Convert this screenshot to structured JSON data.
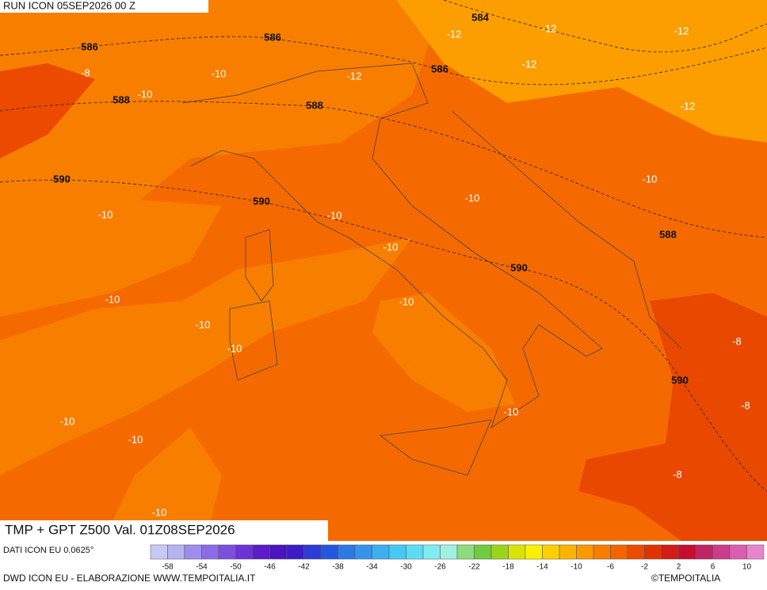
{
  "header": {
    "run": "RUN ICON 05SEP2026 00 Z"
  },
  "title": "TMP + GPT Z500 Val. 01Z08SEP2026",
  "source": "DATI ICON EU 0.0625°",
  "credit": "DWD ICON EU - ELABORAZIONE WWW.TEMPOITALIA.IT",
  "copyright": "©TEMPOITALIA",
  "geopotential_labels": [
    586,
    586,
    584,
    586,
    588,
    588,
    590,
    590,
    588,
    590,
    590
  ],
  "temperature_labels": [
    -12,
    -12,
    -12,
    -12,
    -12,
    -12,
    -8,
    -10,
    -10,
    -10,
    -10,
    -10,
    -10,
    -10,
    -10,
    -10,
    -10,
    -10,
    -8,
    -8,
    -10,
    -10,
    -10,
    -8,
    -10
  ],
  "colorbar": {
    "colors": [
      "#c8c8f4",
      "#b4b4f0",
      "#a08cec",
      "#8c6ce4",
      "#7c50dc",
      "#6c34d4",
      "#5c1cc8",
      "#4c14c0",
      "#3c1cc8",
      "#2c3cd4",
      "#2458dc",
      "#2c78e4",
      "#3494ec",
      "#3cb0f0",
      "#44c8f4",
      "#5cdcf4",
      "#80ecf0",
      "#a0f0e0",
      "#8cdc7c",
      "#70cc3c",
      "#9cd41c",
      "#d8e404",
      "#fcf000",
      "#fcd000",
      "#fcb400",
      "#fc9800",
      "#f87c00",
      "#f46400",
      "#ec4c00",
      "#e03400",
      "#d41c14",
      "#c80c30",
      "#c02464",
      "#cc3c8c",
      "#dc5cb0",
      "#e884cc"
    ],
    "labels": [
      -58,
      -54,
      -50,
      -46,
      -42,
      -38,
      -34,
      -30,
      -26,
      -22,
      -18,
      -14,
      -10,
      -6,
      -2,
      2,
      6,
      10
    ]
  }
}
